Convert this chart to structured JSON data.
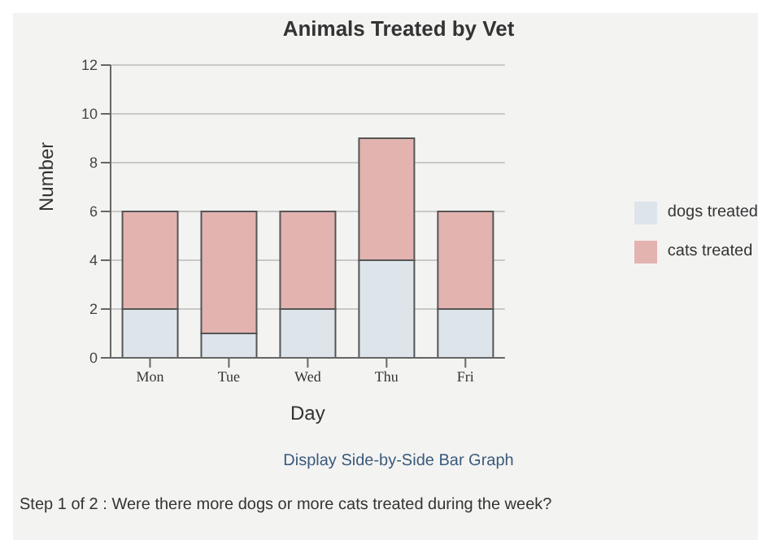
{
  "chart_data": {
    "type": "bar",
    "title": "Animals Treated by Vet",
    "xlabel": "Day",
    "ylabel": "Number",
    "categories": [
      "Mon",
      "Tue",
      "Wed",
      "Thu",
      "Fri"
    ],
    "series": [
      {
        "name": "dogs treated",
        "color": "#dde5eb",
        "values": [
          2,
          1,
          2,
          4,
          2
        ]
      },
      {
        "name": "cats treated",
        "color": "#e3b3b0",
        "values": [
          4,
          5,
          4,
          5,
          4
        ]
      }
    ],
    "stacked": true,
    "ylim": [
      0,
      12
    ],
    "yticks": [
      0,
      2,
      4,
      6,
      8,
      10,
      12
    ],
    "grid": "y",
    "legend": "right",
    "annotations": [
      "Display Side-by-Side Bar Graph",
      "Step 1 of 2 : Were there more dogs or more cats treated during the week?"
    ]
  }
}
